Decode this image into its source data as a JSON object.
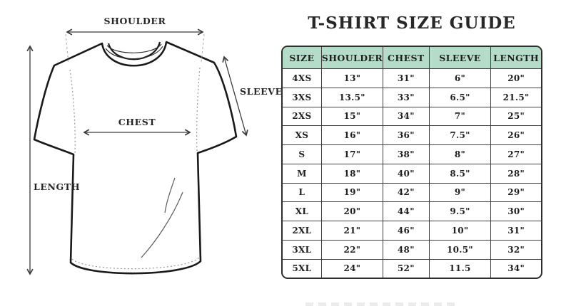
{
  "title": "T-SHIRT SIZE GUIDE",
  "diagram": {
    "labels": {
      "shoulder": "SHOULDER",
      "sleeve": "SLEEVE",
      "chest": "CHEST",
      "length": "LENGTH"
    }
  },
  "table": {
    "headers": [
      "SIZE",
      "SHOULDER",
      "CHEST",
      "SLEEVE",
      "LENGTH"
    ],
    "rows": [
      [
        "4XS",
        "13\"",
        "31\"",
        "6\"",
        "20\""
      ],
      [
        "3XS",
        "13.5\"",
        "33\"",
        "6.5\"",
        "21.5\""
      ],
      [
        "2XS",
        "15\"",
        "34\"",
        "7\"",
        "25\""
      ],
      [
        "XS",
        "16\"",
        "36\"",
        "7.5\"",
        "26\""
      ],
      [
        "S",
        "17\"",
        "38\"",
        "8\"",
        "27\""
      ],
      [
        "M",
        "18\"",
        "40\"",
        "8.5\"",
        "28\""
      ],
      [
        "L",
        "19\"",
        "42\"",
        "9\"",
        "29\""
      ],
      [
        "XL",
        "20\"",
        "44\"",
        "9.5\"",
        "30\""
      ],
      [
        "2XL",
        "21\"",
        "46\"",
        "10\"",
        "31\""
      ],
      [
        "3XL",
        "22\"",
        "48\"",
        "10.5\"",
        "32\""
      ],
      [
        "5XL",
        "24\"",
        "52\"",
        "11.5",
        "34\""
      ]
    ]
  },
  "colors": {
    "header_bg": "#b5dcc9",
    "grid_line": "#3e3e3e",
    "outline": "#1a1a1a",
    "text": "#1f1f1f"
  }
}
